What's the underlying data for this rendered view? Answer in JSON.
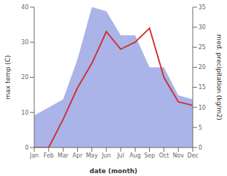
{
  "chart_data": {
    "type": "line",
    "categories": [
      "Jan",
      "Feb",
      "Mar",
      "Apr",
      "May",
      "Jun",
      "Jul",
      "Aug",
      "Sep",
      "Oct",
      "Nov",
      "Dec"
    ],
    "series": [
      {
        "type": "area",
        "axis": "y2",
        "color": "#aab4e8",
        "values": [
          8,
          10,
          12,
          22,
          35,
          34,
          28,
          28,
          20,
          20,
          13,
          12
        ]
      },
      {
        "type": "line",
        "color": "#cc3333",
        "values": [
          0,
          0,
          8,
          17,
          24,
          33,
          28,
          30,
          34,
          20,
          13,
          12
        ]
      }
    ],
    "xlabel": "date (month)",
    "ylabel": "max temp (C)",
    "y2label": "med. precipitation (kg/m2)",
    "ylim": [
      0,
      40
    ],
    "yticks": [
      0,
      10,
      20,
      30,
      40
    ],
    "y2lim": [
      0,
      35
    ],
    "y2ticks": [
      0,
      5,
      10,
      15,
      20,
      25,
      30,
      35
    ],
    "grid": false
  }
}
